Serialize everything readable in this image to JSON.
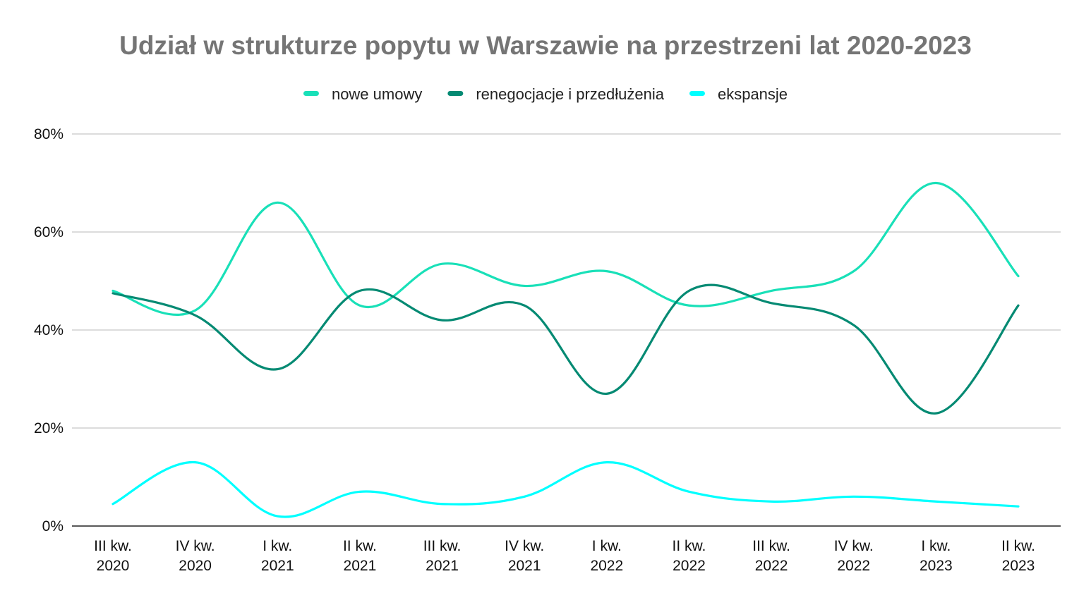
{
  "chart_data": {
    "type": "line",
    "title": "Udział w strukturze popytu w Warszawie na przestrzeni lat 2020-2023",
    "categories": [
      [
        "III kw.",
        "2020"
      ],
      [
        "IV kw.",
        "2020"
      ],
      [
        "I kw.",
        "2021"
      ],
      [
        "II kw.",
        "2021"
      ],
      [
        "III kw.",
        "2021"
      ],
      [
        "IV kw.",
        "2021"
      ],
      [
        "I kw.",
        "2022"
      ],
      [
        "II kw.",
        "2022"
      ],
      [
        "III kw.",
        "2022"
      ],
      [
        "IV kw.",
        "2022"
      ],
      [
        "I kw.",
        "2023"
      ],
      [
        "II kw.",
        "2023"
      ]
    ],
    "y_ticks": [
      "0%",
      "20%",
      "40%",
      "60%",
      "80%"
    ],
    "ylim": [
      0,
      80
    ],
    "y_unit": "%",
    "grid": true,
    "legend_position": "top",
    "series": [
      {
        "name": "nowe umowy",
        "color": "#19E0B8",
        "values": [
          48,
          44,
          66,
          45,
          53.5,
          49,
          52,
          45,
          48,
          52,
          70,
          51
        ]
      },
      {
        "name": "renegocjacje i przedłużenia",
        "color": "#058A73",
        "values": [
          47.5,
          43,
          32,
          48,
          42,
          45,
          27,
          48,
          45.5,
          41,
          23,
          45
        ]
      },
      {
        "name": "ekspansje",
        "color": "#00FFFF",
        "values": [
          4.5,
          13,
          2,
          7,
          4.5,
          6,
          13,
          7,
          5,
          6,
          5,
          4
        ]
      }
    ]
  }
}
